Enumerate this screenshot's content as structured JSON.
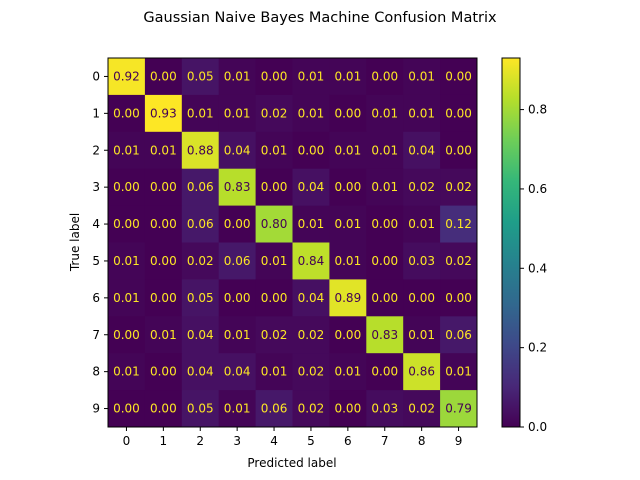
{
  "chart_data": {
    "type": "heatmap",
    "title": "Gaussian Naive Bayes Machine Confusion Matrix",
    "xlabel": "Predicted label",
    "ylabel": "True label",
    "x_categories": [
      "0",
      "1",
      "2",
      "3",
      "4",
      "5",
      "6",
      "7",
      "8",
      "9"
    ],
    "y_categories": [
      "0",
      "1",
      "2",
      "3",
      "4",
      "5",
      "6",
      "7",
      "8",
      "9"
    ],
    "values": [
      [
        0.92,
        0.0,
        0.05,
        0.01,
        0.0,
        0.01,
        0.01,
        0.0,
        0.01,
        0.0
      ],
      [
        0.0,
        0.93,
        0.01,
        0.01,
        0.02,
        0.01,
        0.0,
        0.01,
        0.01,
        0.0
      ],
      [
        0.01,
        0.01,
        0.88,
        0.04,
        0.01,
        0.0,
        0.01,
        0.01,
        0.04,
        0.0
      ],
      [
        0.0,
        0.0,
        0.06,
        0.83,
        0.0,
        0.04,
        0.0,
        0.01,
        0.02,
        0.02
      ],
      [
        0.0,
        0.0,
        0.06,
        0.0,
        0.8,
        0.01,
        0.01,
        0.0,
        0.01,
        0.12
      ],
      [
        0.01,
        0.0,
        0.02,
        0.06,
        0.01,
        0.84,
        0.01,
        0.0,
        0.03,
        0.02
      ],
      [
        0.01,
        0.0,
        0.05,
        0.0,
        0.0,
        0.04,
        0.89,
        0.0,
        0.0,
        0.0
      ],
      [
        0.0,
        0.01,
        0.04,
        0.01,
        0.02,
        0.02,
        0.0,
        0.83,
        0.01,
        0.06
      ],
      [
        0.01,
        0.0,
        0.04,
        0.04,
        0.01,
        0.02,
        0.01,
        0.0,
        0.86,
        0.01
      ],
      [
        0.0,
        0.0,
        0.05,
        0.01,
        0.06,
        0.02,
        0.0,
        0.03,
        0.02,
        0.79
      ]
    ],
    "colormap": "viridis",
    "vmin": 0.0,
    "vmax": 0.93,
    "colorbar_ticks": [
      "0.0",
      "0.2",
      "0.4",
      "0.6",
      "0.8"
    ],
    "annotation_colors": {
      "dark_cell": "#fde725",
      "light_cell": "#440154"
    }
  }
}
